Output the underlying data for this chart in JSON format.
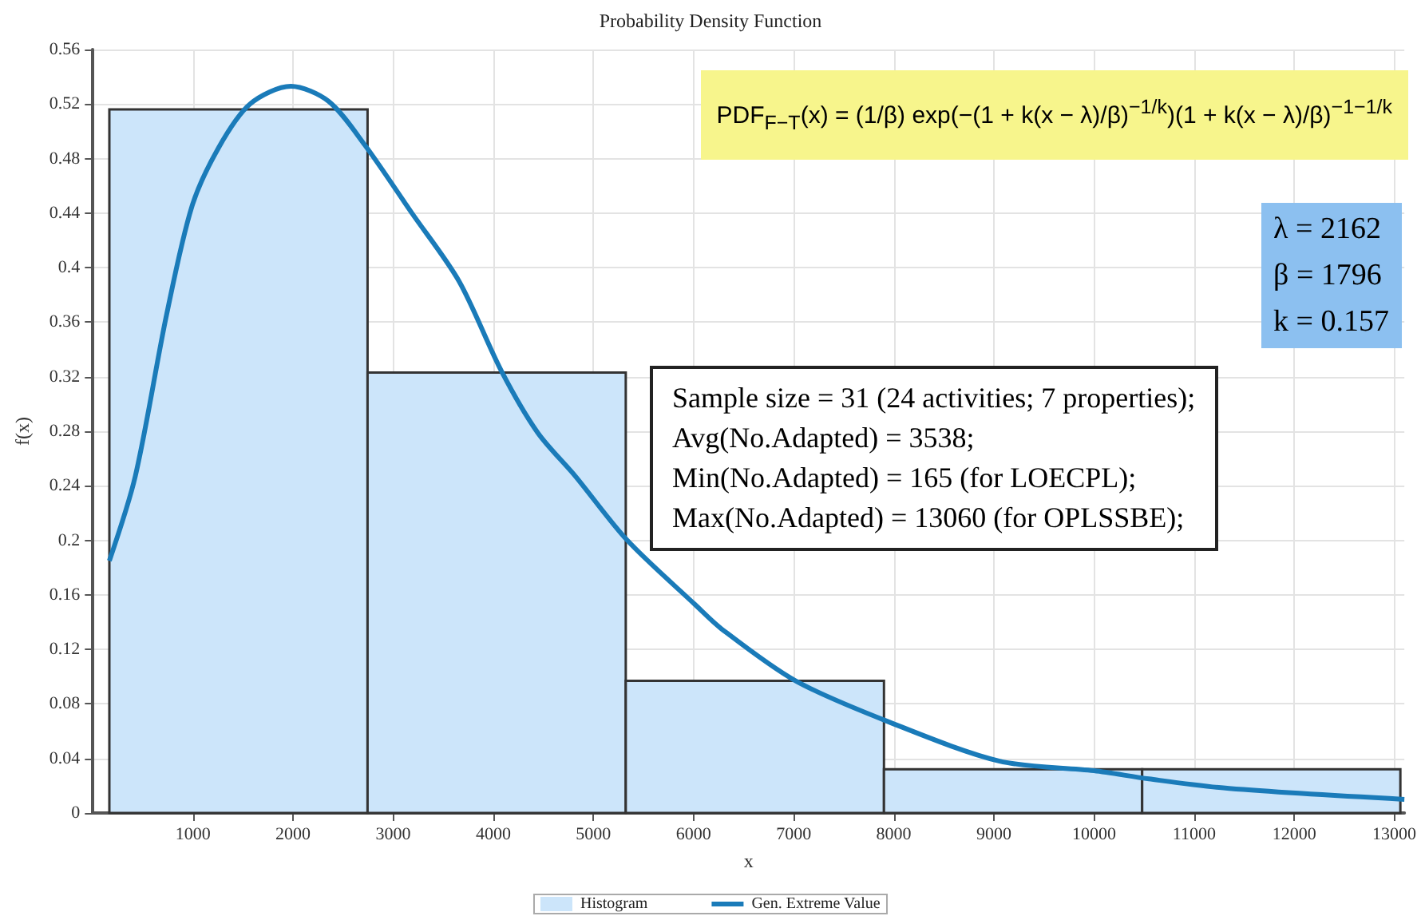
{
  "chart_data": {
    "type": "histogram",
    "title": "Probability Density Function",
    "xlabel": "x",
    "ylabel": "f(x)",
    "bins": [
      165,
      2744,
      5323,
      7902,
      10481,
      13060
    ],
    "series": [
      {
        "name": "Histogram",
        "color": "#cce5fa",
        "values": [
          0.516,
          0.323,
          0.097,
          0.032,
          0.032
        ]
      },
      {
        "name": "Gen. Extreme Value",
        "type": "line",
        "color": "#1a7bb9",
        "x": [
          165,
          424,
          738,
          990,
          1256,
          1570,
          1978,
          2355,
          2716,
          3187,
          3658,
          4082,
          4443,
          4820,
          5338,
          6013,
          6280,
          7017,
          7944,
          9058,
          10000,
          10549,
          11350,
          13100
        ],
        "values": [
          0.185,
          0.247,
          0.366,
          0.445,
          0.488,
          0.52,
          0.533,
          0.522,
          0.49,
          0.44,
          0.39,
          0.324,
          0.279,
          0.247,
          0.2,
          0.153,
          0.135,
          0.097,
          0.067,
          0.038,
          0.031,
          0.025,
          0.018,
          0.01
        ]
      }
    ],
    "xlim": [
      0,
      13100
    ],
    "xticks": [
      1000,
      2000,
      3000,
      4000,
      5000,
      6000,
      7000,
      8000,
      9000,
      10000,
      11000,
      12000,
      13000
    ],
    "ylim": [
      0,
      0.56
    ],
    "yticks": [
      0,
      0.04,
      0.08,
      0.12,
      0.16,
      0.2,
      0.24,
      0.28,
      0.32,
      0.36,
      0.4,
      0.44,
      0.48,
      0.52,
      0.56
    ],
    "grid": true,
    "legend": "bottom",
    "annotations": [
      "PDF$_{F−T}$(x) = (1/β) exp(−(1 + k(x − λ)/β)$^{−1/k}$)(1 + k(x − λ)/β)$^{−1−1/k}$",
      "λ = 2162",
      "β = 1796",
      "k = 0.157",
      "Sample size = 31 (24 activities; 7 properties);",
      "Avg(No.Adapted) = 3538;",
      "Min(No.Adapted) = 165 (for LOECPL);",
      "Max(No.Adapted) = 13060 (for OPLSSBE);"
    ]
  }
}
